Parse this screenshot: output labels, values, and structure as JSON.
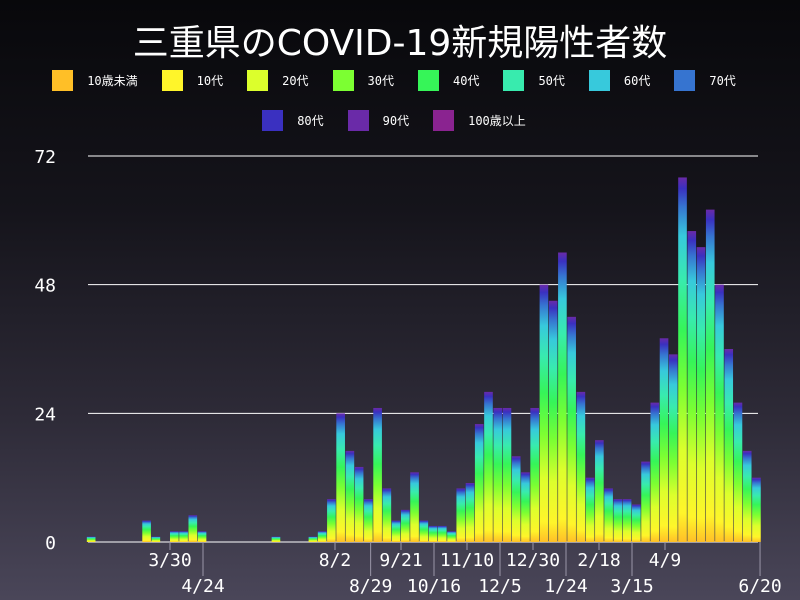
{
  "chart_data": {
    "type": "bar",
    "stacked": true,
    "title": "三重県のCOVID-19新規陽性者数",
    "legend_position": "top",
    "legend": [
      {
        "name": "10歳未満",
        "color": "#ffbf27"
      },
      {
        "name": "10代",
        "color": "#fff52a"
      },
      {
        "name": "20代",
        "color": "#dcff2c"
      },
      {
        "name": "30代",
        "color": "#7cff32"
      },
      {
        "name": "40代",
        "color": "#36f558"
      },
      {
        "name": "50代",
        "color": "#38ebae"
      },
      {
        "name": "60代",
        "color": "#37c9dc"
      },
      {
        "name": "70代",
        "color": "#3674d0"
      },
      {
        "name": "80代",
        "color": "#3a30c0"
      },
      {
        "name": "90代",
        "color": "#6a2aa8"
      },
      {
        "name": "100歳以上",
        "color": "#8a2390"
      }
    ],
    "ylim": [
      0,
      72
    ],
    "yticks": [
      "0",
      "24",
      "48",
      "72"
    ],
    "grid": true,
    "xtick_labels": [
      {
        "label": "3/30",
        "date": "2020-03-30"
      },
      {
        "label": "4/24",
        "date": "2020-04-24"
      },
      {
        "label": "8/2",
        "date": "2020-08-02"
      },
      {
        "label": "8/29",
        "date": "2020-08-29"
      },
      {
        "label": "9/21",
        "date": "2020-09-21"
      },
      {
        "label": "10/16",
        "date": "2020-10-16"
      },
      {
        "label": "11/10",
        "date": "2020-11-10"
      },
      {
        "label": "12/5",
        "date": "2020-12-05"
      },
      {
        "label": "12/30",
        "date": "2020-12-30"
      },
      {
        "label": "1/24",
        "date": "2021-01-24"
      },
      {
        "label": "2/18",
        "date": "2021-02-18"
      },
      {
        "label": "3/15",
        "date": "2021-03-15"
      },
      {
        "label": "4/9",
        "date": "2021-04-09"
      },
      {
        "label": "6/20",
        "date": "2021-06-20"
      }
    ],
    "weekly_peak_daily_total": {
      "week_start": [
        "2020-01-27",
        "2020-02-03",
        "2020-02-10",
        "2020-02-17",
        "2020-02-24",
        "2020-03-02",
        "2020-03-09",
        "2020-03-16",
        "2020-03-23",
        "2020-03-30",
        "2020-04-06",
        "2020-04-13",
        "2020-04-20",
        "2020-04-27",
        "2020-05-04",
        "2020-05-11",
        "2020-05-18",
        "2020-05-25",
        "2020-06-01",
        "2020-06-08",
        "2020-06-15",
        "2020-06-22",
        "2020-06-29",
        "2020-07-06",
        "2020-07-13",
        "2020-07-20",
        "2020-07-27",
        "2020-08-03",
        "2020-08-10",
        "2020-08-17",
        "2020-08-24",
        "2020-08-31",
        "2020-09-07",
        "2020-09-14",
        "2020-09-21",
        "2020-09-28",
        "2020-10-05",
        "2020-10-12",
        "2020-10-19",
        "2020-10-26",
        "2020-11-02",
        "2020-11-09",
        "2020-11-16",
        "2020-11-23",
        "2020-11-30",
        "2020-12-07",
        "2020-12-14",
        "2020-12-21",
        "2020-12-28",
        "2021-01-04",
        "2021-01-11",
        "2021-01-18",
        "2021-01-25",
        "2021-02-01",
        "2021-02-08",
        "2021-02-15",
        "2021-02-22",
        "2021-03-01",
        "2021-03-08",
        "2021-03-15",
        "2021-03-22",
        "2021-03-29",
        "2021-04-05",
        "2021-04-12",
        "2021-04-19",
        "2021-04-26",
        "2021-05-03",
        "2021-05-10",
        "2021-05-17",
        "2021-05-24",
        "2021-05-31",
        "2021-06-07",
        "2021-06-14"
      ],
      "values": [
        1,
        0,
        0,
        0,
        0,
        0,
        4,
        1,
        0,
        2,
        2,
        5,
        2,
        0,
        0,
        0,
        0,
        0,
        0,
        0,
        1,
        0,
        0,
        0,
        1,
        2,
        8,
        24,
        17,
        14,
        8,
        25,
        10,
        4,
        6,
        13,
        4,
        3,
        3,
        2,
        10,
        11,
        22,
        28,
        25,
        25,
        16,
        13,
        25,
        48,
        45,
        54,
        42,
        28,
        12,
        19,
        10,
        8,
        8,
        7,
        15,
        26,
        38,
        35,
        68,
        58,
        55,
        62,
        48,
        36,
        26,
        17,
        12
      ]
    }
  }
}
